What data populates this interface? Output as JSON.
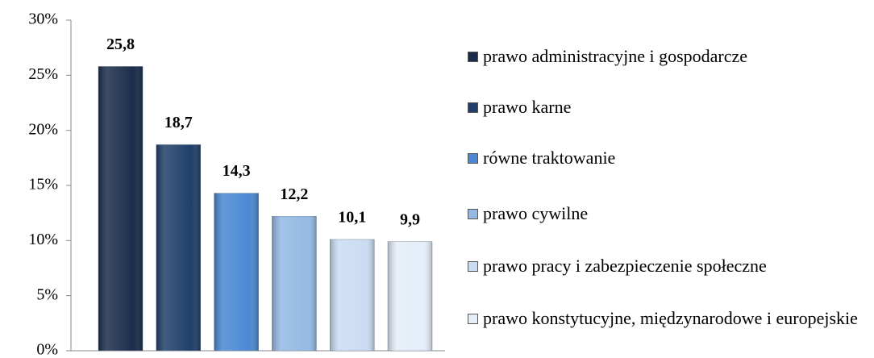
{
  "chart_data": {
    "type": "bar",
    "categories": [
      "prawo administracyjne i gospodarcze",
      "prawo karne",
      "równe traktowanie",
      "prawo cywilne",
      "prawo pracy i zabezpieczenie społeczne",
      "prawo konstytucyjne, międzynarodowe i europejskie"
    ],
    "values": [
      25.8,
      18.7,
      14.3,
      12.2,
      10.1,
      9.9
    ],
    "value_labels": [
      "25,8",
      "18,7",
      "14,3",
      "12,2",
      "10,1",
      "9,9"
    ],
    "colors": [
      "#1b2d4b",
      "#213f69",
      "#4a88d2",
      "#94b9e4",
      "#cadcf2",
      "#e4edf8"
    ],
    "ylim": [
      0,
      30
    ],
    "yticks": [
      {
        "value": 0,
        "label": "0%"
      },
      {
        "value": 5,
        "label": "5%"
      },
      {
        "value": 10,
        "label": "10%"
      },
      {
        "value": 15,
        "label": "15%"
      },
      {
        "value": 20,
        "label": "20%"
      },
      {
        "value": 25,
        "label": "25%"
      },
      {
        "value": 30,
        "label": "30%"
      }
    ],
    "legend": "right"
  }
}
